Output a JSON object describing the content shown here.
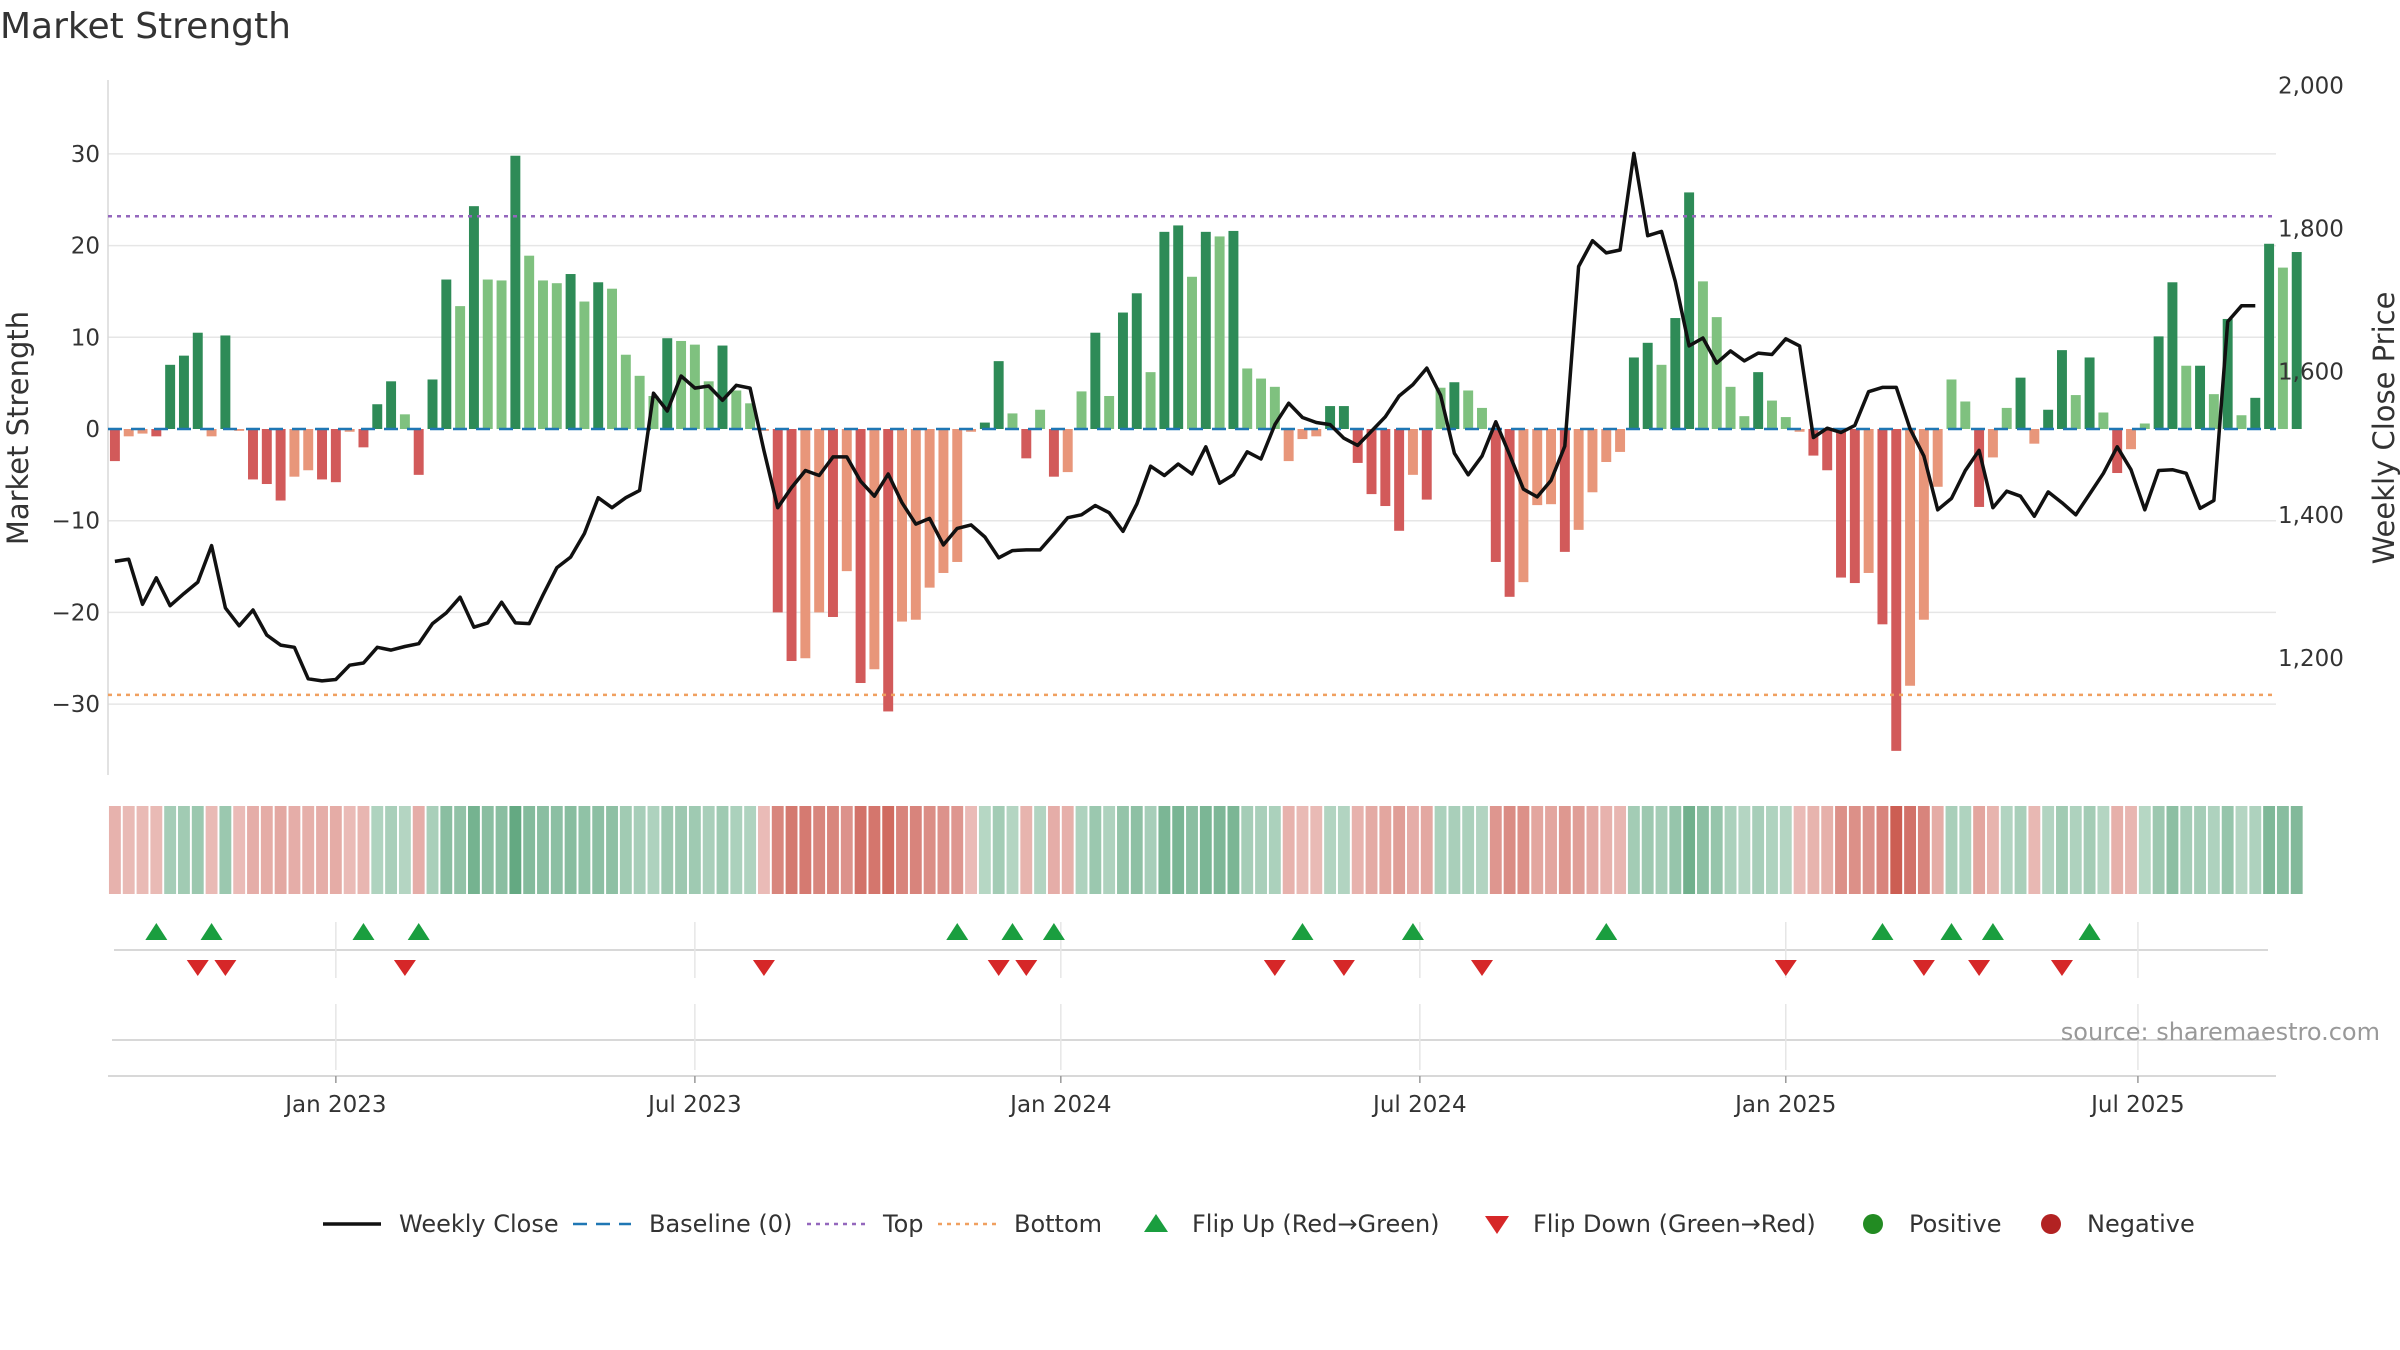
{
  "chart_data": {
    "type": "bar",
    "title": "Market Strength",
    "ylabel": "Market Strength",
    "y2label": "Weekly Close Price",
    "ylim": [
      -38,
      38
    ],
    "y2lim": [
      1050,
      2000
    ],
    "yticks": [
      30,
      20,
      10,
      0,
      -10,
      -20,
      -30
    ],
    "ytick_labels": [
      "30",
      "20",
      "10",
      "0",
      "−10",
      "−20",
      "−30"
    ],
    "y2ticks": [
      2000,
      1800,
      1600,
      1400,
      1200
    ],
    "y2tick_labels": [
      "2,000",
      "1,800",
      "1,600",
      "1,400",
      "1,200"
    ],
    "xlim": [
      0,
      157
    ],
    "xticks": [
      {
        "label": "Jan 2023",
        "week": 16
      },
      {
        "label": "Jul 2023",
        "week": 42
      },
      {
        "label": "Jan 2024",
        "week": 68.5
      },
      {
        "label": "Jul 2024",
        "week": 94.5
      },
      {
        "label": "Jan 2025",
        "week": 121
      },
      {
        "label": "Jul 2025",
        "week": 146.5
      }
    ],
    "top_level": 23.2,
    "bottom_level": -29,
    "strength": [
      -3.5,
      -0.8,
      -0.5,
      -0.8,
      7,
      8,
      10.5,
      -0.8,
      10.2,
      -0.2,
      -5.5,
      -6,
      -7.8,
      -5.2,
      -4.5,
      -5.5,
      -5.8,
      -0.3,
      -2,
      2.7,
      5.2,
      1.6,
      -5,
      5.4,
      16.3,
      13.4,
      24.3,
      16.3,
      16.2,
      29.8,
      18.9,
      16.2,
      15.9,
      16.9,
      13.9,
      16,
      15.3,
      8.1,
      5.8,
      3.6,
      9.9,
      9.6,
      9.2,
      5.2,
      9.1,
      4.2,
      2.8,
      -0.2,
      -20,
      -25.3,
      -25,
      -20,
      -20.5,
      -15.5,
      -27.7,
      -26.2,
      -30.8,
      -21,
      -20.8,
      -17.3,
      -15.7,
      -14.5,
      -0.3,
      0.7,
      7.4,
      1.7,
      -3.2,
      2.1,
      -5.2,
      -4.7,
      4.1,
      10.5,
      3.6,
      12.7,
      14.8,
      6.2,
      21.5,
      22.2,
      16.6,
      21.5,
      21,
      21.6,
      6.6,
      5.5,
      4.6,
      -3.5,
      -1.1,
      -0.8,
      2.5,
      2.5,
      -3.7,
      -7.1,
      -8.4,
      -11.1,
      -5,
      -7.7,
      4.5,
      5.1,
      4.2,
      2.3,
      -14.5,
      -18.3,
      -16.7,
      -8.3,
      -8.2,
      -13.4,
      -11,
      -6.9,
      -3.6,
      -2.5,
      7.8,
      9.4,
      7,
      12.1,
      25.8,
      16.1,
      12.2,
      4.6,
      1.4,
      6.2,
      3.1,
      1.3,
      -0.3,
      -2.9,
      -4.5,
      -16.2,
      -16.8,
      -15.7,
      -21.3,
      -35.1,
      -28,
      -20.8,
      -6.3,
      5.4,
      3,
      -8.5,
      -3.1,
      2.3,
      5.6,
      -1.6,
      2.1,
      8.6,
      3.7,
      7.8,
      1.8,
      -4.8,
      -2.2,
      0.6,
      10.1,
      16,
      6.9,
      6.9,
      3.8,
      12,
      1.5,
      3.4,
      20.2,
      17.6,
      19.3
    ],
    "weekly_close": [
      1335,
      1338,
      1275,
      1312,
      1273,
      1290,
      1306,
      1357,
      1270,
      1245,
      1267,
      1232,
      1218,
      1215,
      1171,
      1168,
      1170,
      1190,
      1193,
      1215,
      1211,
      1216,
      1220,
      1248,
      1263,
      1285,
      1243,
      1249,
      1278,
      1249,
      1248,
      1288,
      1326,
      1341,
      1374,
      1424,
      1410,
      1424,
      1434,
      1570,
      1545,
      1594,
      1577,
      1580,
      1560,
      1581,
      1577,
      1490,
      1410,
      1438,
      1462,
      1455,
      1481,
      1481,
      1447,
      1426,
      1457,
      1417,
      1387,
      1395,
      1358,
      1381,
      1386,
      1369,
      1340,
      1350,
      1351,
      1351,
      1373,
      1396,
      1400,
      1413,
      1403,
      1377,
      1415,
      1468,
      1455,
      1471,
      1457,
      1495,
      1444,
      1456,
      1488,
      1478,
      1526,
      1556,
      1536,
      1529,
      1526,
      1507,
      1497,
      1517,
      1537,
      1566,
      1582,
      1605,
      1567,
      1486,
      1456,
      1482,
      1530,
      1484,
      1436,
      1425,
      1448,
      1496,
      1747,
      1783,
      1766,
      1770,
      1905,
      1790,
      1796,
      1726,
      1636,
      1647,
      1612,
      1629,
      1615,
      1626,
      1624,
      1646,
      1636,
      1508,
      1521,
      1515,
      1525,
      1572,
      1578,
      1578,
      1520,
      1482,
      1407,
      1423,
      1462,
      1490,
      1410,
      1433,
      1426,
      1398,
      1432,
      1417,
      1400,
      1429,
      1458,
      1495,
      1463,
      1407,
      1462,
      1463,
      1458,
      1409,
      1420,
      1670,
      1692,
      1692
    ],
    "flip_up_weeks": [
      3,
      7,
      18,
      22,
      61,
      65,
      68,
      86,
      94,
      108,
      128,
      133,
      136,
      143
    ],
    "flip_down_weeks": [
      6,
      8,
      21,
      47,
      64,
      66,
      84,
      89,
      99,
      121,
      131,
      135,
      141
    ],
    "source": "source: sharemaestro.com",
    "colors": {
      "pos_strong": "#2e8b57",
      "pos_light": "#7fc17f",
      "neg_strong": "#d25a5a",
      "neg_light": "#e8967a",
      "line": "#111111",
      "baseline": "#1f77b4",
      "top": "#9467bd",
      "bottom": "#f0a060",
      "flip_up": "#1a9e3f",
      "flip_down": "#d62728",
      "positive": "#228b22",
      "negative": "#b22222",
      "heat_pos": "#2e8b57",
      "heat_neg": "#c0392b"
    },
    "legend": [
      {
        "key": "line",
        "label": "Weekly Close"
      },
      {
        "key": "baseline",
        "label": "Baseline (0)"
      },
      {
        "key": "top",
        "label": "Top"
      },
      {
        "key": "bottom",
        "label": "Bottom"
      },
      {
        "key": "flip_up",
        "label": "Flip Up (Red→Green)"
      },
      {
        "key": "flip_down",
        "label": "Flip Down (Green→Red)"
      },
      {
        "key": "positive",
        "label": "Positive"
      },
      {
        "key": "negative",
        "label": "Negative"
      }
    ]
  }
}
